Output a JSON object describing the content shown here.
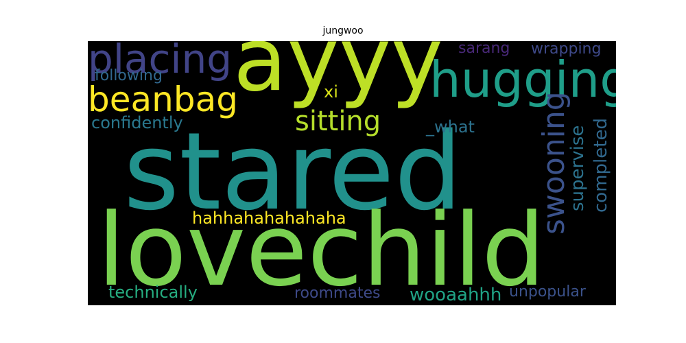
{
  "title": "jungwoo",
  "words": [
    {
      "id": "stared",
      "text": "stared",
      "color": "#21918c"
    },
    {
      "id": "lovechild",
      "text": "lovechild",
      "color": "#7ad151"
    },
    {
      "id": "ayyy",
      "text": "ayyy",
      "color": "#bddf26"
    },
    {
      "id": "hugging",
      "text": "hugging",
      "color": "#1f9e89"
    },
    {
      "id": "placing",
      "text": "placing",
      "color": "#414487"
    },
    {
      "id": "beanbag",
      "text": "beanbag",
      "color": "#fde725"
    },
    {
      "id": "sitting",
      "text": "sitting",
      "color": "#b5de2b"
    },
    {
      "id": "swooning",
      "text": "swooning",
      "color": "#3b528b"
    },
    {
      "id": "hahhahahahahaha",
      "text": "hahhahahahahaha",
      "color": "#fde725"
    },
    {
      "id": "supervise",
      "text": "supervise",
      "color": "#2c728e"
    },
    {
      "id": "completed",
      "text": "completed",
      "color": "#31688e"
    },
    {
      "id": "confidently",
      "text": "confidently",
      "color": "#2a788e"
    },
    {
      "id": "what",
      "text": "_what",
      "color": "#2c728e"
    },
    {
      "id": "sarang",
      "text": "sarang",
      "color": "#482878"
    },
    {
      "id": "wrapping",
      "text": "wrapping",
      "color": "#3e4989"
    },
    {
      "id": "following",
      "text": "following",
      "color": "#31688e"
    },
    {
      "id": "xi",
      "text": "xi",
      "color": "#d8e219"
    },
    {
      "id": "technically",
      "text": "technically",
      "color": "#26ad81"
    },
    {
      "id": "roommates",
      "text": "roommates",
      "color": "#3e4a89"
    },
    {
      "id": "wooaahhh",
      "text": "wooaahhh",
      "color": "#20a386"
    },
    {
      "id": "unpopular",
      "text": "unpopular",
      "color": "#3b528b"
    }
  ]
}
